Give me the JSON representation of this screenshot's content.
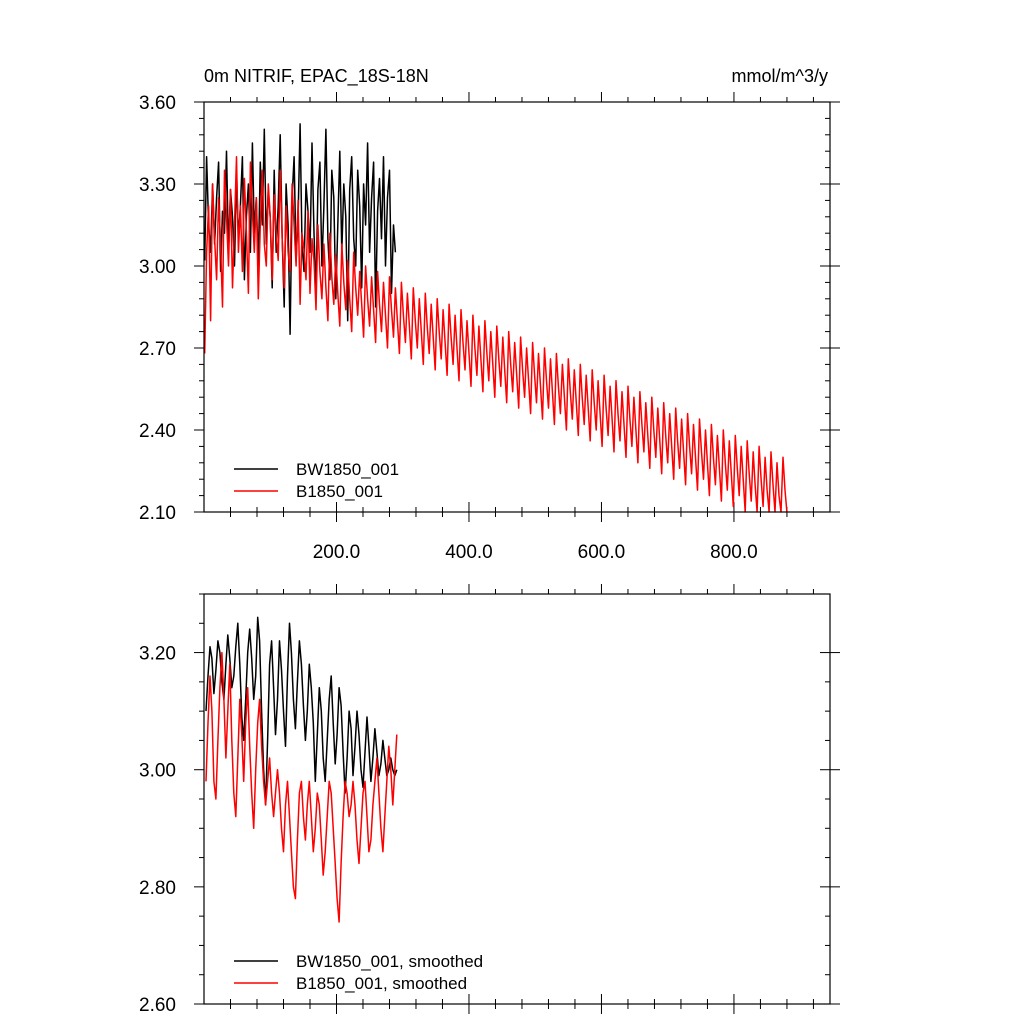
{
  "chart_data": [
    {
      "type": "line",
      "title": "0m NITRIF, EPAC_18S-18N",
      "units": "mmol/m^3/y",
      "xlim": [
        0,
        945
      ],
      "ylim": [
        2.1,
        3.6
      ],
      "xticks": [
        200,
        400,
        600,
        800
      ],
      "xtick_labels": [
        "200.0",
        "400.0",
        "600.0",
        "800.0"
      ],
      "yticks": [
        2.1,
        2.4,
        2.7,
        3.0,
        3.3,
        3.6
      ],
      "ytick_labels": [
        "2.10",
        "2.40",
        "2.70",
        "3.00",
        "3.30",
        "3.60"
      ],
      "legend_position": "bottom-left",
      "series": [
        {
          "name": "BW1850_001",
          "color": "#000000",
          "x_start": 1,
          "x_step": 3,
          "values": [
            3.02,
            3.4,
            3.15,
            3.05,
            3.3,
            3.08,
            3.25,
            3.38,
            2.98,
            3.2,
            3.12,
            3.42,
            3.05,
            3.28,
            3.18,
            3.0,
            3.35,
            3.1,
            3.22,
            3.4,
            2.95,
            3.18,
            3.3,
            3.05,
            3.45,
            3.12,
            3.25,
            3.0,
            3.38,
            3.15,
            3.5,
            3.08,
            3.28,
            3.18,
            2.92,
            3.35,
            3.05,
            3.22,
            3.48,
            3.1,
            2.85,
            3.3,
            3.15,
            2.75,
            3.25,
            3.4,
            3.02,
            3.18,
            3.52,
            3.08,
            2.98,
            3.3,
            3.2,
            3.05,
            3.45,
            3.12,
            2.9,
            3.28,
            3.38,
            3.0,
            3.22,
            3.5,
            3.1,
            2.95,
            3.35,
            3.25,
            2.88,
            3.15,
            3.42,
            3.05,
            3.3,
            3.18,
            2.8,
            3.28,
            3.4,
            3.1,
            3.0,
            3.35,
            3.22,
            2.92,
            3.3,
            3.15,
            3.45,
            3.05,
            3.25,
            3.38,
            2.85,
            3.2,
            3.32,
            3.1,
            3.4,
            3.0,
            3.25,
            3.35,
            2.9,
            3.15,
            3.05
          ]
        },
        {
          "name": "B1850_001",
          "color": "#ff0000",
          "x_start": 1,
          "x_step": 3,
          "values": [
            2.68,
            3.05,
            3.22,
            2.8,
            3.3,
            3.1,
            2.95,
            3.25,
            3.08,
            2.85,
            3.35,
            3.18,
            3.0,
            3.28,
            2.92,
            3.15,
            3.4,
            3.05,
            3.22,
            2.98,
            3.32,
            3.12,
            2.9,
            3.38,
            3.2,
            3.05,
            3.25,
            2.88,
            3.15,
            3.35,
            3.08,
            3.0,
            3.3,
            3.18,
            2.95,
            3.26,
            3.12,
            3.02,
            3.35,
            3.1,
            2.92,
            3.22,
            3.05,
            2.98,
            3.3,
            3.15,
            3.0,
            3.24,
            2.86,
            3.12,
            3.06,
            2.95,
            3.2,
            2.9,
            3.1,
            3.02,
            2.84,
            3.15,
            2.98,
            2.88,
            3.08,
            2.92,
            2.8,
            3.12,
            2.96,
            2.86,
            3.04,
            2.9,
            2.78,
            3.08,
            2.94,
            2.84,
            3.02,
            2.88,
            2.76,
            3.05,
            2.92,
            2.82,
            2.98,
            2.86,
            2.74,
            3.0,
            2.88,
            2.78,
            2.96,
            2.84,
            2.72,
            2.98,
            2.86,
            2.76,
            2.94,
            2.82,
            2.7,
            2.96,
            2.84,
            2.74,
            2.92,
            2.8,
            2.68,
            2.94,
            2.82,
            2.72,
            2.9,
            2.78,
            2.66,
            2.92,
            2.8,
            2.7,
            2.88,
            2.76,
            2.64,
            2.9,
            2.78,
            2.68,
            2.86,
            2.74,
            2.62,
            2.88,
            2.76,
            2.66,
            2.84,
            2.72,
            2.6,
            2.86,
            2.74,
            2.64,
            2.82,
            2.7,
            2.58,
            2.84,
            2.72,
            2.62,
            2.8,
            2.68,
            2.56,
            2.82,
            2.7,
            2.6,
            2.78,
            2.66,
            2.54,
            2.8,
            2.68,
            2.58,
            2.76,
            2.64,
            2.52,
            2.78,
            2.66,
            2.56,
            2.74,
            2.62,
            2.5,
            2.76,
            2.64,
            2.54,
            2.72,
            2.6,
            2.48,
            2.74,
            2.62,
            2.52,
            2.7,
            2.58,
            2.46,
            2.72,
            2.6,
            2.5,
            2.68,
            2.56,
            2.44,
            2.7,
            2.58,
            2.48,
            2.66,
            2.54,
            2.42,
            2.68,
            2.56,
            2.46,
            2.64,
            2.52,
            2.4,
            2.66,
            2.54,
            2.44,
            2.62,
            2.5,
            2.38,
            2.64,
            2.52,
            2.42,
            2.6,
            2.48,
            2.36,
            2.62,
            2.5,
            2.4,
            2.58,
            2.46,
            2.34,
            2.6,
            2.48,
            2.38,
            2.56,
            2.44,
            2.32,
            2.58,
            2.46,
            2.36,
            2.54,
            2.42,
            2.3,
            2.56,
            2.44,
            2.34,
            2.52,
            2.4,
            2.28,
            2.54,
            2.42,
            2.32,
            2.5,
            2.38,
            2.26,
            2.52,
            2.4,
            2.3,
            2.48,
            2.36,
            2.24,
            2.5,
            2.38,
            2.28,
            2.46,
            2.34,
            2.22,
            2.48,
            2.36,
            2.26,
            2.44,
            2.32,
            2.2,
            2.46,
            2.34,
            2.24,
            2.42,
            2.3,
            2.18,
            2.44,
            2.32,
            2.22,
            2.4,
            2.28,
            2.16,
            2.42,
            2.3,
            2.2,
            2.38,
            2.26,
            2.14,
            2.4,
            2.28,
            2.18,
            2.36,
            2.24,
            2.12,
            2.38,
            2.26,
            2.16,
            2.34,
            2.22,
            2.1,
            2.36,
            2.24,
            2.14,
            2.32,
            2.2,
            2.1,
            2.34,
            2.22,
            2.12,
            2.3,
            2.18,
            2.1,
            2.32,
            2.2,
            2.1,
            2.28,
            2.16,
            2.1,
            2.3,
            2.18,
            2.1
          ]
        }
      ]
    },
    {
      "type": "line",
      "title": "",
      "xlim": [
        0,
        945
      ],
      "ylim": [
        2.6,
        3.3
      ],
      "yticks": [
        2.6,
        2.8,
        3.0,
        3.2
      ],
      "ytick_labels": [
        "2.60",
        "2.80",
        "3.00",
        "3.20"
      ],
      "legend_position": "bottom-left",
      "series": [
        {
          "name": "BW1850_001, smoothed",
          "color": "#000000",
          "x_start": 3,
          "x_step": 3,
          "values": [
            3.1,
            3.16,
            3.21,
            3.19,
            3.13,
            3.17,
            3.22,
            3.2,
            3.15,
            3.12,
            3.18,
            3.23,
            3.19,
            3.14,
            3.16,
            3.21,
            3.25,
            3.18,
            3.09,
            3.05,
            3.12,
            3.2,
            3.24,
            3.19,
            3.12,
            3.16,
            3.26,
            3.22,
            3.1,
            3.0,
            2.94,
            3.05,
            3.18,
            3.22,
            3.14,
            3.06,
            3.12,
            3.22,
            3.17,
            3.1,
            3.04,
            3.16,
            3.25,
            3.2,
            3.12,
            3.07,
            3.15,
            3.22,
            3.18,
            3.11,
            3.05,
            3.1,
            3.18,
            3.14,
            3.08,
            2.98,
            3.06,
            3.14,
            3.1,
            3.02,
            2.98,
            3.05,
            3.12,
            3.16,
            3.08,
            3.01,
            3.06,
            3.14,
            3.11,
            3.03,
            2.96,
            3.02,
            3.1,
            3.07,
            2.99,
            3.04,
            3.1,
            3.06,
            3.0,
            2.97,
            3.03,
            3.09,
            3.04,
            2.98,
            3.02,
            3.07,
            3.03,
            2.99,
            3.01,
            3.05,
            3.02,
            2.99,
            3.0,
            3.02,
            3.0,
            2.99,
            3.0
          ]
        },
        {
          "name": "B1850_001, smoothed",
          "color": "#ff0000",
          "x_start": 3,
          "x_step": 3,
          "values": [
            2.98,
            3.08,
            3.16,
            3.1,
            2.98,
            2.95,
            3.05,
            3.14,
            3.2,
            3.12,
            3.02,
            3.1,
            3.18,
            3.05,
            2.96,
            2.92,
            3.02,
            3.12,
            3.06,
            2.98,
            3.08,
            3.14,
            3.04,
            2.96,
            2.9,
            3.0,
            3.08,
            3.12,
            3.04,
            2.98,
            2.94,
            2.98,
            3.02,
            2.96,
            2.92,
            2.96,
            3.0,
            2.96,
            2.9,
            2.86,
            2.94,
            2.98,
            2.92,
            2.86,
            2.8,
            2.78,
            2.88,
            2.96,
            2.98,
            2.92,
            2.88,
            2.94,
            2.98,
            2.92,
            2.86,
            2.9,
            2.96,
            2.94,
            2.88,
            2.82,
            2.86,
            2.92,
            2.98,
            2.96,
            2.9,
            2.84,
            2.78,
            2.74,
            2.84,
            2.92,
            2.98,
            2.96,
            2.92,
            2.94,
            2.98,
            2.94,
            2.88,
            2.84,
            2.9,
            2.96,
            2.98,
            2.92,
            2.86,
            2.88,
            2.94,
            2.98,
            3.02,
            2.96,
            2.9,
            2.86,
            2.92,
            2.98,
            3.04,
            3.0,
            2.94,
            3.0,
            3.06
          ]
        }
      ]
    }
  ]
}
